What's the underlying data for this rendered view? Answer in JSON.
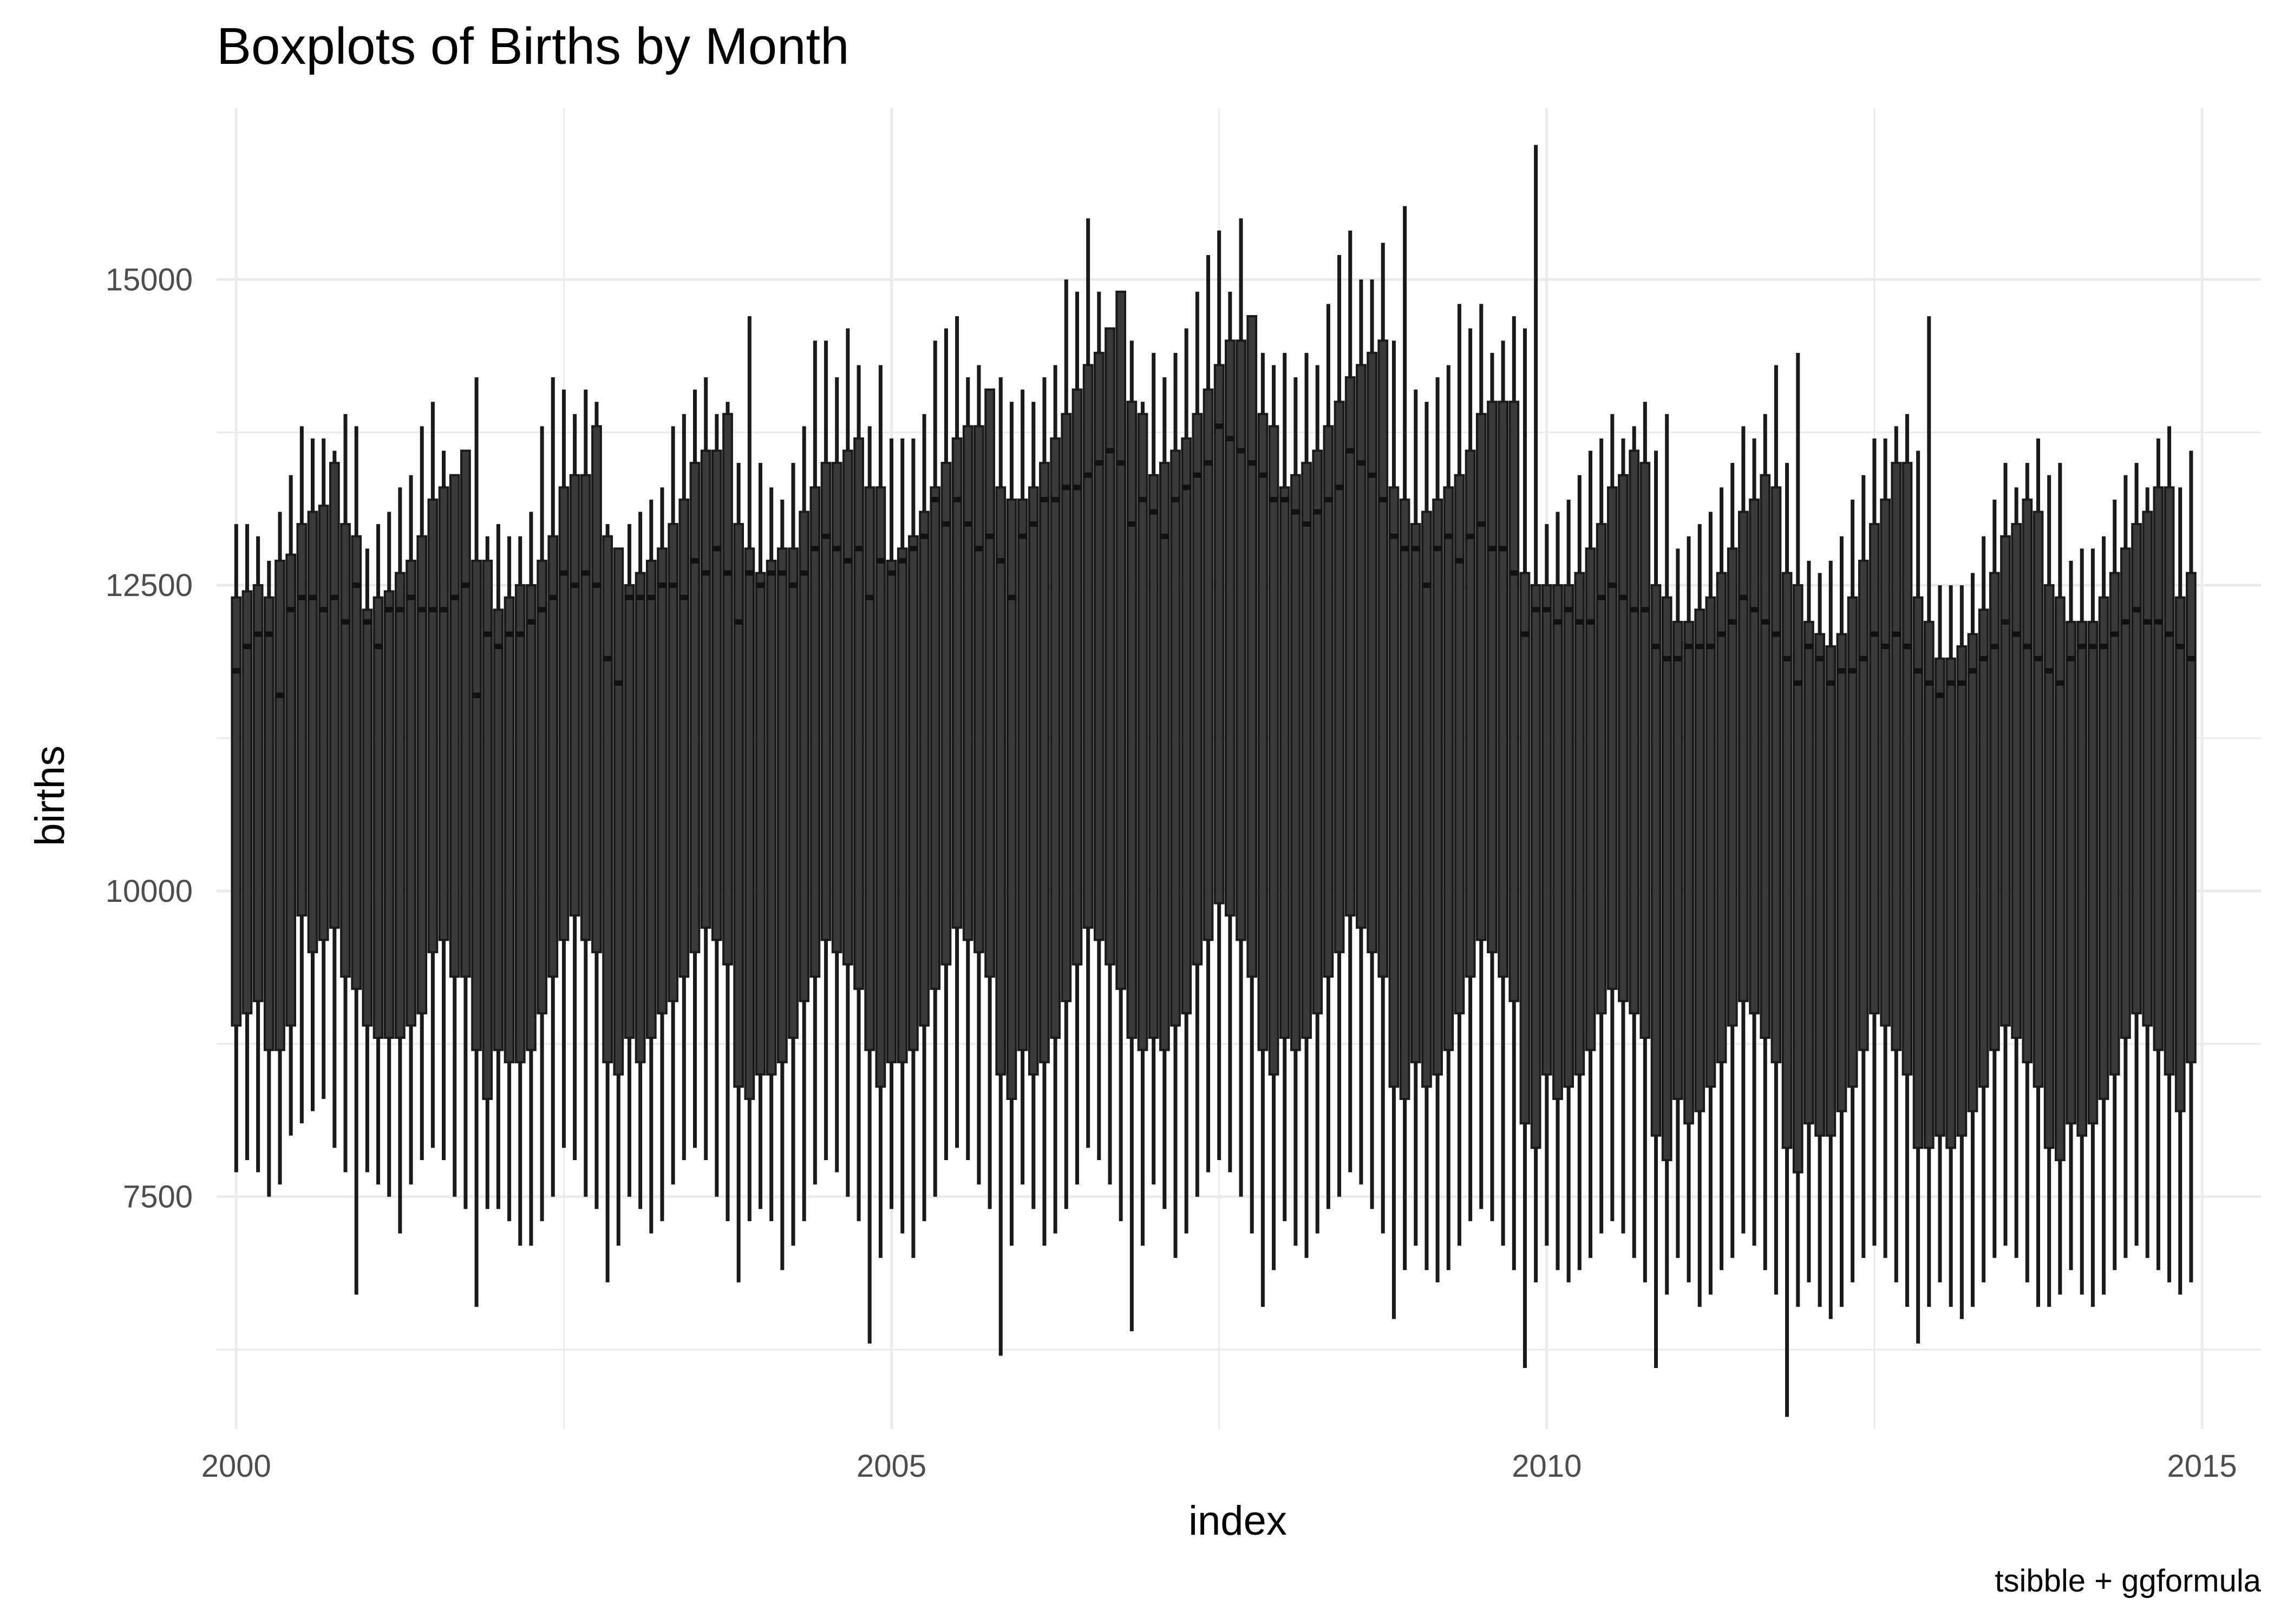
{
  "chart_data": {
    "type": "boxplot",
    "title": "Boxplots of Births by Month",
    "xlabel": "index",
    "ylabel": "births",
    "caption": "tsibble + ggformula",
    "xlim": [
      1999.85,
      2015.45
    ],
    "ylim": [
      5600,
      16400
    ],
    "x_ticks": [
      2000,
      2005,
      2010,
      2015
    ],
    "x_tick_labels": [
      "2000",
      "2005",
      "2010",
      "2015"
    ],
    "x_minor_ticks": [
      2002.5,
      2007.5,
      2012.5
    ],
    "y_ticks": [
      7500,
      10000,
      12500,
      15000
    ],
    "y_tick_labels": [
      "7500",
      "10000",
      "12500",
      "15000"
    ],
    "y_minor_ticks": [
      6250,
      8750,
      11250,
      13750
    ],
    "box_color": "#3a3a3a",
    "line_color": "#1a1a1a",
    "series_start": {
      "year": 2000,
      "month": 1
    },
    "series_note": "one box per month, Jan 2000 - Dec 2014; values read from the plot",
    "max": [
      13000,
      13000,
      12900,
      12700,
      13100,
      13400,
      13800,
      13700,
      13700,
      13600,
      13900,
      13800,
      12800,
      13000,
      13100,
      13300,
      13400,
      13800,
      14000,
      13600,
      13300,
      13600,
      14200,
      12900,
      13000,
      12900,
      12900,
      13100,
      13800,
      14200,
      14100,
      13900,
      14100,
      14000,
      13000,
      12800,
      13000,
      13100,
      13200,
      13300,
      13800,
      13900,
      14100,
      14200,
      13900,
      14000,
      13500,
      14700,
      13500,
      13300,
      13200,
      13500,
      13800,
      14500,
      14500,
      14200,
      14600,
      14300,
      13800,
      14300,
      13700,
      13700,
      13700,
      13900,
      14500,
      14600,
      14700,
      14200,
      14300,
      14000,
      14200,
      14000,
      14100,
      14000,
      14200,
      14300,
      15000,
      14900,
      15500,
      14900,
      14500,
      14900,
      14500,
      14000,
      14400,
      14200,
      14400,
      14600,
      14900,
      15200,
      15400,
      14900,
      15500,
      14700,
      14400,
      14300,
      14400,
      14200,
      14400,
      14300,
      14800,
      15200,
      15400,
      15000,
      15000,
      15300,
      14500,
      15600,
      14100,
      14000,
      14200,
      14300,
      14800,
      14600,
      14800,
      14400,
      14500,
      14700,
      14600,
      16100,
      13000,
      13100,
      13200,
      13400,
      13600,
      13700,
      13900,
      13700,
      13800,
      14000,
      13600,
      13900,
      12800,
      12900,
      13000,
      13100,
      13300,
      13500,
      13800,
      13700,
      13900,
      14300,
      13500,
      14400,
      12700,
      12600,
      12700,
      12900,
      13200,
      13400,
      13700,
      13700,
      13800,
      13900,
      13600,
      14700,
      12500,
      12500,
      12500,
      12600,
      12900,
      13200,
      13500,
      13300,
      13500,
      13700,
      13400,
      13500,
      12700,
      12800,
      12800,
      12900,
      13200,
      13400,
      13500,
      13300,
      13700,
      13800,
      13300,
      13600
    ],
    "q3": [
      12400,
      12450,
      12500,
      12400,
      12700,
      12750,
      13000,
      13100,
      13150,
      13500,
      13000,
      12900,
      12300,
      12400,
      12450,
      12600,
      12700,
      12900,
      13200,
      13300,
      13400,
      13600,
      12700,
      12700,
      12300,
      12400,
      12500,
      12500,
      12700,
      12900,
      13300,
      13400,
      13400,
      13800,
      12900,
      12800,
      12500,
      12600,
      12700,
      12800,
      13000,
      13200,
      13500,
      13600,
      13600,
      13900,
      13000,
      12800,
      12600,
      12700,
      12800,
      12800,
      13100,
      13300,
      13500,
      13500,
      13600,
      13700,
      13300,
      13300,
      12700,
      12800,
      12900,
      13100,
      13300,
      13500,
      13700,
      13800,
      13800,
      14100,
      13300,
      13200,
      13200,
      13300,
      13500,
      13700,
      13900,
      14100,
      14300,
      14400,
      14600,
      14900,
      14000,
      13900,
      13400,
      13500,
      13600,
      13700,
      13900,
      14100,
      14300,
      14500,
      14500,
      14700,
      13900,
      13800,
      13300,
      13400,
      13500,
      13600,
      13800,
      14000,
      14200,
      14300,
      14400,
      14500,
      13300,
      13200,
      13000,
      13100,
      13200,
      13300,
      13400,
      13600,
      13900,
      14000,
      14000,
      14000,
      12600,
      12500,
      12500,
      12500,
      12500,
      12600,
      12800,
      13000,
      13300,
      13400,
      13600,
      13500,
      12500,
      12400,
      12200,
      12200,
      12300,
      12400,
      12600,
      12800,
      13100,
      13200,
      13400,
      13300,
      12600,
      12500,
      12200,
      12100,
      12000,
      12100,
      12400,
      12700,
      13000,
      13200,
      13500,
      13500,
      12400,
      12200,
      11900,
      11900,
      12000,
      12100,
      12300,
      12600,
      12900,
      13000,
      13200,
      13100,
      12500,
      12400,
      12200,
      12200,
      12200,
      12400,
      12600,
      12800,
      13000,
      13100,
      13300,
      13300,
      12400,
      12600
    ],
    "median": [
      11800,
      12000,
      12100,
      12100,
      11600,
      12300,
      12400,
      12400,
      12300,
      12400,
      12200,
      12500,
      12200,
      12000,
      12300,
      12300,
      12400,
      12300,
      12300,
      12300,
      12400,
      12500,
      11600,
      12100,
      12000,
      12100,
      12100,
      12200,
      12300,
      12400,
      12600,
      12500,
      12600,
      12500,
      11900,
      11700,
      12400,
      12400,
      12400,
      12500,
      12500,
      12400,
      12700,
      12600,
      12800,
      12600,
      12200,
      12600,
      12500,
      12600,
      12600,
      12500,
      12600,
      12800,
      12900,
      12800,
      12700,
      12800,
      12400,
      12700,
      12600,
      12700,
      12800,
      12900,
      13200,
      13000,
      13200,
      13000,
      12800,
      12900,
      12700,
      12400,
      12900,
      13000,
      13200,
      13200,
      13300,
      13300,
      13400,
      13500,
      13600,
      13500,
      13000,
      13200,
      13100,
      12900,
      13200,
      13300,
      13400,
      13500,
      13800,
      13700,
      13600,
      13500,
      13400,
      13200,
      13200,
      13100,
      13000,
      13100,
      13200,
      13300,
      13600,
      13500,
      13400,
      13200,
      12900,
      12800,
      12800,
      12500,
      12800,
      12900,
      12700,
      12900,
      13000,
      12800,
      12800,
      12600,
      12100,
      12300,
      12300,
      12200,
      12300,
      12200,
      12200,
      12400,
      12500,
      12400,
      12300,
      12300,
      12000,
      11900,
      11900,
      12000,
      12000,
      12000,
      12100,
      12200,
      12400,
      12300,
      12200,
      12100,
      11900,
      11700,
      12000,
      11900,
      11700,
      11800,
      11800,
      11900,
      12100,
      12000,
      12100,
      12000,
      11800,
      11700,
      11600,
      11700,
      11700,
      11800,
      11900,
      12000,
      12200,
      12100,
      12000,
      11900,
      11800,
      11700,
      11900,
      12000,
      12000,
      12000,
      12100,
      12200,
      12300,
      12200,
      12200,
      12100,
      12000,
      11900
    ],
    "q1": [
      8900,
      9000,
      9100,
      8700,
      8700,
      8900,
      9800,
      9500,
      9600,
      9700,
      9300,
      9200,
      8900,
      8800,
      8800,
      8800,
      8900,
      9000,
      9500,
      9600,
      9300,
      9300,
      8700,
      8300,
      8700,
      8600,
      8600,
      8700,
      9000,
      9300,
      9600,
      9800,
      9600,
      9500,
      8600,
      8500,
      8800,
      8600,
      8800,
      9000,
      9100,
      9300,
      9500,
      9700,
      9600,
      9400,
      8400,
      8300,
      8500,
      8500,
      8600,
      8800,
      9100,
      9300,
      9600,
      9500,
      9400,
      9200,
      8700,
      8400,
      8600,
      8600,
      8700,
      8900,
      9200,
      9400,
      9700,
      9600,
      9500,
      9300,
      8500,
      8300,
      8700,
      8500,
      8600,
      8800,
      9100,
      9400,
      9700,
      9600,
      9400,
      9200,
      8800,
      8700,
      8800,
      8700,
      8900,
      9000,
      9400,
      9600,
      9900,
      9800,
      9600,
      9300,
      8700,
      8500,
      8800,
      8700,
      8800,
      9000,
      9300,
      9500,
      9800,
      9700,
      9500,
      9300,
      8400,
      8300,
      8600,
      8400,
      8500,
      8700,
      9000,
      9300,
      9600,
      9500,
      9300,
      9100,
      8100,
      7900,
      8500,
      8300,
      8400,
      8500,
      8700,
      9000,
      9200,
      9100,
      9000,
      8800,
      8000,
      7800,
      8300,
      8100,
      8200,
      8400,
      8600,
      8900,
      9100,
      9000,
      8800,
      8600,
      7900,
      7700,
      8100,
      8000,
      8000,
      8200,
      8400,
      8700,
      9000,
      8900,
      8700,
      8500,
      7900,
      7900,
      8000,
      7900,
      8000,
      8200,
      8400,
      8700,
      8900,
      8800,
      8600,
      8400,
      7900,
      7800,
      8100,
      8000,
      8100,
      8300,
      8500,
      8800,
      9000,
      8900,
      8700,
      8500,
      8200,
      8600
    ],
    "min": [
      7700,
      7800,
      7700,
      7500,
      7600,
      8000,
      8100,
      8200,
      8300,
      7900,
      7700,
      6700,
      7700,
      7600,
      7500,
      7200,
      7600,
      7800,
      7900,
      7800,
      7500,
      7400,
      6600,
      7400,
      7400,
      7300,
      7100,
      7100,
      7300,
      7500,
      7900,
      7800,
      7500,
      7400,
      6800,
      7100,
      7500,
      7400,
      7200,
      7300,
      7600,
      7800,
      7900,
      7800,
      7500,
      7300,
      6800,
      7300,
      7400,
      7300,
      6900,
      7100,
      7300,
      7600,
      7800,
      7700,
      7500,
      7300,
      6300,
      7000,
      7400,
      7200,
      7000,
      7300,
      7500,
      7800,
      7900,
      7800,
      7600,
      7400,
      6200,
      7100,
      7600,
      7400,
      7100,
      7200,
      7400,
      7600,
      7900,
      7800,
      7600,
      7300,
      6400,
      7100,
      7600,
      7400,
      7000,
      7200,
      7500,
      7700,
      7800,
      7700,
      7500,
      7200,
      6600,
      6900,
      7300,
      7100,
      7000,
      7200,
      7400,
      7500,
      7700,
      7600,
      7400,
      7200,
      6500,
      6900,
      7100,
      6900,
      6800,
      6900,
      7100,
      7300,
      7400,
      7300,
      7100,
      6900,
      6100,
      6800,
      7100,
      6900,
      6800,
      6900,
      7000,
      7200,
      7300,
      7200,
      7000,
      6800,
      6100,
      6700,
      7000,
      6800,
      6600,
      6700,
      6900,
      7000,
      7200,
      7100,
      6900,
      6700,
      5700,
      6600,
      6800,
      6600,
      6500,
      6600,
      6800,
      7000,
      7100,
      7000,
      6800,
      6600,
      6300,
      6600,
      6800,
      6600,
      6500,
      6600,
      6800,
      7000,
      7100,
      7000,
      6800,
      6600,
      6600,
      6700,
      6900,
      6700,
      6600,
      6700,
      6900,
      7000,
      7100,
      7000,
      6900,
      6800,
      6700,
      6800
    ]
  }
}
